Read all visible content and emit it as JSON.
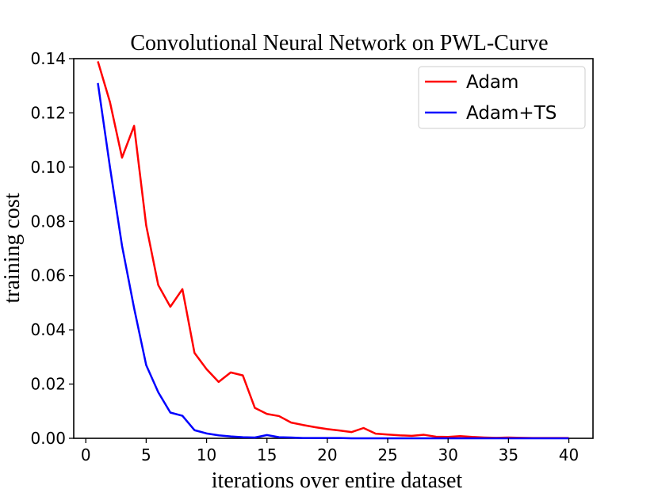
{
  "chart_data": {
    "type": "line",
    "title": "Convolutional Neural Network on PWL-Curve",
    "xlabel": "iterations over entire dataset",
    "ylabel": "training cost",
    "xlim": [
      -1,
      42
    ],
    "ylim": [
      0,
      0.14
    ],
    "xticks": [
      0,
      5,
      10,
      15,
      20,
      25,
      30,
      35,
      40
    ],
    "xtick_labels": [
      "0",
      "5",
      "10",
      "15",
      "20",
      "25",
      "30",
      "35",
      "40"
    ],
    "yticks": [
      0,
      0.02,
      0.04,
      0.06,
      0.08,
      0.1,
      0.12,
      0.14
    ],
    "ytick_labels": [
      "0.00",
      "0.02",
      "0.04",
      "0.06",
      "0.08",
      "0.10",
      "0.12",
      "0.14"
    ],
    "grid": false,
    "legend_position": "top-right",
    "series": [
      {
        "name": "Adam",
        "color": "#ff0000",
        "x": [
          1,
          2,
          3,
          4,
          5,
          6,
          7,
          8,
          9,
          10,
          11,
          12,
          13,
          14,
          15,
          16,
          17,
          18,
          19,
          20,
          21,
          22,
          23,
          24,
          25,
          26,
          27,
          28,
          29,
          30,
          31,
          32,
          33,
          34,
          35,
          36,
          37,
          38,
          39,
          40
        ],
        "y": [
          0.139,
          0.124,
          0.1035,
          0.1152,
          0.0785,
          0.0565,
          0.0485,
          0.055,
          0.0315,
          0.0255,
          0.0208,
          0.0243,
          0.0232,
          0.0112,
          0.009,
          0.0082,
          0.0058,
          0.0049,
          0.0041,
          0.0034,
          0.0029,
          0.0023,
          0.0038,
          0.0017,
          0.0014,
          0.0011,
          0.0009,
          0.0013,
          0.0006,
          0.0005,
          0.0008,
          0.0005,
          0.0003,
          0.0002,
          0.0003,
          0.0002,
          0.0001,
          0.0001,
          0.0001,
          0.0001
        ]
      },
      {
        "name": "Adam+TS",
        "color": "#0000ff",
        "x": [
          1,
          2,
          3,
          4,
          5,
          6,
          7,
          8,
          9,
          10,
          11,
          12,
          13,
          14,
          15,
          16,
          17,
          18,
          19,
          20,
          21,
          22,
          23,
          24,
          25,
          26,
          27,
          28,
          29,
          30,
          31,
          32,
          33,
          34,
          35,
          36,
          37,
          38,
          39,
          40
        ],
        "y": [
          0.131,
          0.1,
          0.071,
          0.048,
          0.027,
          0.017,
          0.0095,
          0.0083,
          0.003,
          0.0018,
          0.0011,
          0.0007,
          0.0004,
          0.0003,
          0.0012,
          0.0004,
          0.0003,
          0.0001,
          0.0001,
          0.0001,
          0.0001,
          0,
          0,
          0,
          0,
          0,
          0,
          0,
          0,
          0,
          0,
          0,
          0,
          0,
          0,
          0,
          0,
          0,
          0,
          0
        ]
      }
    ]
  }
}
